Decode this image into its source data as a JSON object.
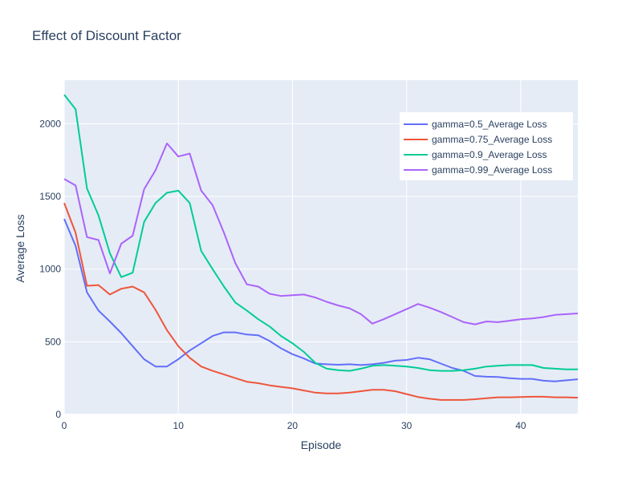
{
  "chart_data": {
    "type": "line",
    "title": "Effect of Discount Factor",
    "xlabel": "Episode",
    "ylabel": "Average Loss",
    "xlim": [
      0,
      45
    ],
    "ylim": [
      0,
      2300
    ],
    "x_ticks": [
      0,
      10,
      20,
      30,
      40
    ],
    "y_ticks": [
      0,
      500,
      1000,
      1500,
      2000
    ],
    "grid": true,
    "legend_position": "top-right",
    "x": [
      0,
      1,
      2,
      3,
      4,
      5,
      6,
      7,
      8,
      9,
      10,
      11,
      12,
      13,
      14,
      15,
      16,
      17,
      18,
      19,
      20,
      21,
      22,
      23,
      24,
      25,
      26,
      27,
      28,
      29,
      30,
      31,
      32,
      33,
      34,
      35,
      36,
      37,
      38,
      39,
      40,
      41,
      42,
      43,
      44,
      45
    ],
    "series": [
      {
        "name": "gamma=0.5_Average Loss",
        "color": "#636efa",
        "values": [
          1345,
          1160,
          840,
          715,
          640,
          560,
          470,
          380,
          330,
          330,
          380,
          440,
          490,
          540,
          565,
          565,
          550,
          545,
          505,
          455,
          415,
          385,
          350,
          345,
          342,
          345,
          340,
          345,
          355,
          370,
          375,
          390,
          380,
          350,
          320,
          300,
          265,
          260,
          258,
          250,
          245,
          245,
          232,
          228,
          235,
          242
        ]
      },
      {
        "name": "gamma=0.75_Average Loss",
        "color": "#ef553b",
        "values": [
          1455,
          1250,
          885,
          890,
          825,
          865,
          880,
          840,
          720,
          580,
          470,
          390,
          330,
          300,
          275,
          250,
          225,
          215,
          200,
          190,
          180,
          165,
          150,
          145,
          145,
          150,
          160,
          170,
          170,
          160,
          140,
          120,
          108,
          100,
          100,
          100,
          105,
          112,
          118,
          118,
          120,
          122,
          122,
          118,
          118,
          115
        ]
      },
      {
        "name": "gamma=0.9_Average Loss",
        "color": "#00cc96",
        "values": [
          2200,
          2100,
          1555,
          1370,
          1110,
          945,
          975,
          1325,
          1455,
          1525,
          1540,
          1455,
          1125,
          1000,
          880,
          770,
          715,
          655,
          605,
          540,
          490,
          430,
          355,
          315,
          305,
          300,
          315,
          335,
          340,
          335,
          330,
          320,
          305,
          300,
          300,
          305,
          315,
          330,
          335,
          340,
          340,
          340,
          320,
          315,
          310,
          310
        ]
      },
      {
        "name": "gamma=0.99_Average Loss",
        "color": "#ab63fa",
        "values": [
          1620,
          1575,
          1220,
          1200,
          970,
          1175,
          1230,
          1550,
          1680,
          1865,
          1775,
          1795,
          1540,
          1440,
          1250,
          1040,
          895,
          880,
          830,
          815,
          820,
          825,
          805,
          775,
          750,
          730,
          690,
          625,
          655,
          690,
          725,
          760,
          735,
          705,
          670,
          635,
          620,
          640,
          635,
          645,
          655,
          660,
          670,
          685,
          690,
          695
        ]
      }
    ]
  }
}
